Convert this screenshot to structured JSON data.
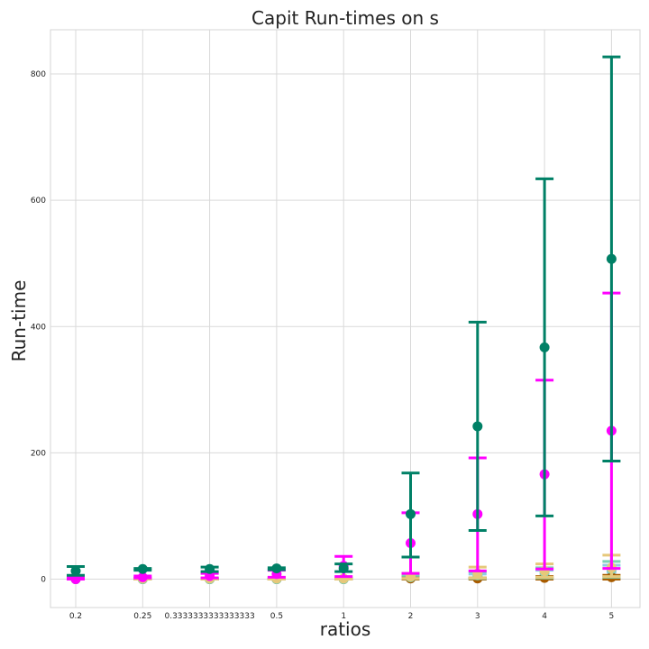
{
  "chart_data": {
    "type": "scatter",
    "title": "Capit Run-times on s",
    "xlabel": "ratios",
    "ylabel": "Run-time",
    "categories": [
      "0.2",
      "0.25",
      "0.3333333333333333",
      "0.5",
      "1",
      "2",
      "3",
      "4",
      "5"
    ],
    "yticks": [
      0,
      200,
      400,
      600,
      800
    ],
    "ylim": [
      -45,
      870
    ],
    "grid": true,
    "legend": "none",
    "series": [
      {
        "color": "#008066",
        "values": [
          13,
          16,
          16,
          17,
          17,
          103,
          242,
          367,
          507
        ],
        "err_low": [
          6,
          14,
          12,
          15,
          12,
          35,
          77,
          100,
          187
        ],
        "err_high": [
          20,
          17,
          19,
          18,
          24,
          168,
          407,
          634,
          827
        ]
      },
      {
        "color": "#ff00ff",
        "values": [
          0,
          3,
          5,
          8,
          21,
          57,
          103,
          166,
          235
        ],
        "err_low": [
          0,
          2,
          2,
          3,
          4,
          9,
          13,
          16,
          17
        ],
        "err_high": [
          3,
          5,
          9,
          14,
          36,
          105,
          192,
          315,
          453
        ]
      },
      {
        "color": "#e6c87a",
        "values": [
          1,
          1,
          1,
          1,
          1,
          4,
          9,
          13,
          18
        ],
        "err_low": [
          0,
          0,
          0,
          0,
          0,
          1,
          2,
          3,
          4
        ],
        "err_high": [
          2,
          2,
          2,
          2,
          2,
          9,
          19,
          24,
          38
        ]
      },
      {
        "color": "#7dd3b4",
        "values": [
          0,
          0,
          0,
          0,
          0,
          3,
          6,
          11,
          16
        ],
        "err_low": [
          0,
          0,
          0,
          0,
          0,
          1,
          1,
          2,
          3
        ],
        "err_high": [
          1,
          1,
          1,
          1,
          1,
          6,
          12,
          18,
          28
        ]
      },
      {
        "color": "#a85c00",
        "values": [
          0,
          0,
          0,
          0,
          0,
          1,
          1,
          2,
          3
        ],
        "err_low": [
          0,
          0,
          0,
          0,
          0,
          0,
          0,
          0,
          0
        ],
        "err_high": [
          0,
          0,
          0,
          0,
          0,
          2,
          2,
          4,
          6
        ]
      },
      {
        "color": "#8ecae6",
        "values": [
          0,
          0,
          0,
          0,
          0,
          2,
          4,
          8,
          12
        ],
        "err_low": [
          0,
          0,
          0,
          0,
          0,
          1,
          1,
          2,
          3
        ],
        "err_high": [
          1,
          1,
          1,
          1,
          1,
          4,
          8,
          14,
          22
        ]
      }
    ]
  }
}
